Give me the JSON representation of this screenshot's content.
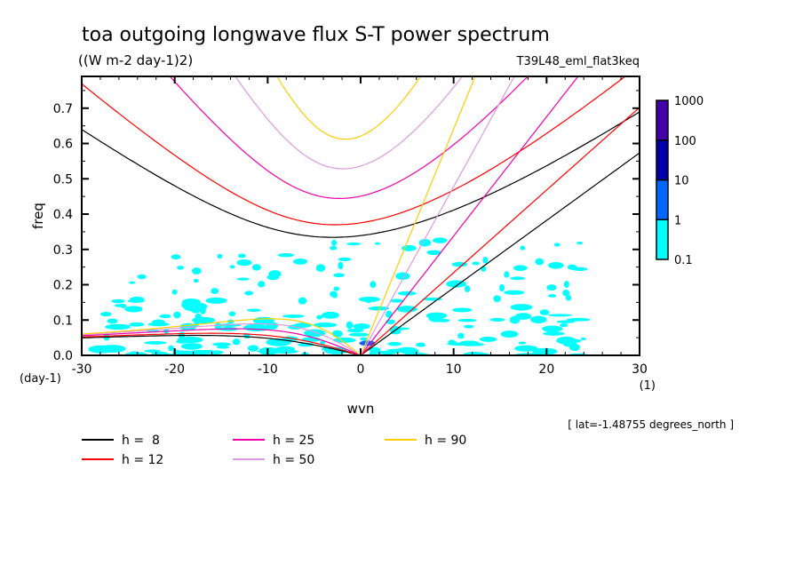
{
  "chart_data": {
    "type": "heatmap",
    "title": "toa outgoing longwave flux S-T power spectrum",
    "units": "((W m-2 day-1)2)",
    "run_label": "T39L48_eml_flat3keq",
    "xlabel": "wvn",
    "xunits": "(1)",
    "ylabel": "freq",
    "yunits": "(day-1)",
    "xlim": [
      -30,
      30
    ],
    "ylim": [
      0.0,
      0.79
    ],
    "xticks": [
      -30,
      -20,
      -10,
      0,
      10,
      20,
      30
    ],
    "xtick_labels": [
      "-30",
      "-20",
      "-10",
      "0",
      "10",
      "20",
      "30"
    ],
    "yticks": [
      0.0,
      0.1,
      0.2,
      0.3,
      0.4,
      0.5,
      0.6,
      0.7
    ],
    "ytick_labels": [
      "0.0",
      "0.1",
      "0.2",
      "0.3",
      "0.4",
      "0.5",
      "0.6",
      "0.7"
    ],
    "colorbar": {
      "levels": [
        "0.1",
        "1",
        "10",
        "100",
        "1000"
      ],
      "colors": [
        "#00ffff",
        "#0066ff",
        "#0000aa",
        "#4400aa"
      ]
    },
    "annotation": "[ lat=-1.48755 degrees_north ]",
    "series": [
      {
        "name": "h =  8",
        "equivalent_depth": 8,
        "color": "#000000"
      },
      {
        "name": "h = 12",
        "equivalent_depth": 12,
        "color": "#ff0000"
      },
      {
        "name": "h = 25",
        "equivalent_depth": 25,
        "color": "#ee00aa"
      },
      {
        "name": "h = 50",
        "equivalent_depth": 50,
        "color": "#dd99dd"
      },
      {
        "name": "h = 90",
        "equivalent_depth": 90,
        "color": "#ffcc00"
      }
    ],
    "dispersion_curves": [
      "kelvin",
      "inertia-gravity n=1",
      "equatorial rossby n=1"
    ],
    "power_regions": [
      {
        "level": "0.1-1",
        "wvn": [
          -28,
          -3
        ],
        "freq": [
          0.0,
          0.3
        ]
      },
      {
        "level": "0.1-1",
        "wvn": [
          -3,
          24
        ],
        "freq": [
          0.0,
          0.33
        ]
      },
      {
        "level": "1-10",
        "wvn": [
          -1.5,
          1.5
        ],
        "freq": [
          0.02,
          0.04
        ]
      }
    ],
    "legend_position": "bottom"
  }
}
